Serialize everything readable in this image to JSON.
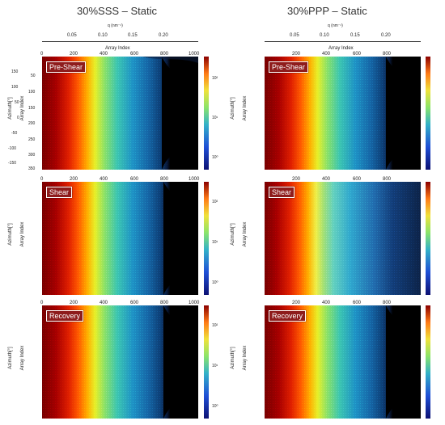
{
  "titles": {
    "left": "30%SSS – Static",
    "right": "30%PPP – Static"
  },
  "q_axis": {
    "label": "q (nm⁻¹)",
    "ticks": [
      "0.05",
      "0.10",
      "0.15",
      "0.20"
    ]
  },
  "array_axis": {
    "label": "Array Index",
    "ticks_left": [
      "0",
      "200",
      "400",
      "600",
      "800",
      "1000"
    ],
    "ticks_right": [
      "200",
      "400",
      "600",
      "800"
    ]
  },
  "y_axis": {
    "azimuth_label": "Azimuth[°]",
    "array_label": "Array Index",
    "azimuth_ticks": [
      "150",
      "100",
      "50",
      "0",
      "-50",
      "-100",
      "-150"
    ],
    "index_ticks": [
      "50",
      "100",
      "150",
      "200",
      "250",
      "300",
      "350"
    ]
  },
  "panels": {
    "left": [
      "Pre-Shear",
      "Shear",
      "Recovery"
    ],
    "right": [
      "Pre-Shear",
      "Shear",
      "Recovery"
    ]
  },
  "colorbar": {
    "left_ticks": [
      "10²",
      "10¹",
      "10⁰"
    ]
  }
}
